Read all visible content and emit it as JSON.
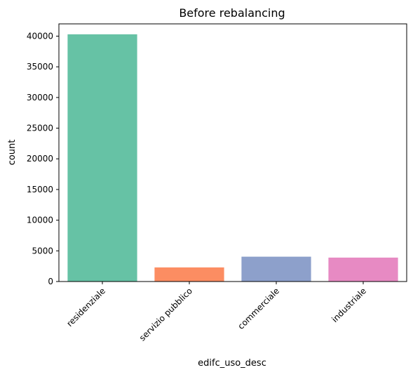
{
  "chart_data": {
    "type": "bar",
    "title": "Before rebalancing",
    "xlabel": "edifc_uso_desc",
    "ylabel": "count",
    "categories": [
      "residenziale",
      "servizio pubblico",
      "commerciale",
      "industriale"
    ],
    "values": [
      40300,
      2300,
      4050,
      3900
    ],
    "colors": [
      "#66c2a5",
      "#fc8d62",
      "#8da0cb",
      "#e78ac3"
    ],
    "ylim": [
      0,
      42000
    ],
    "yticks": [
      0,
      5000,
      10000,
      15000,
      20000,
      25000,
      30000,
      35000,
      40000
    ],
    "ytick_labels": [
      "0",
      "5000",
      "10000",
      "15000",
      "20000",
      "25000",
      "30000",
      "35000",
      "40000"
    ],
    "grid": false,
    "legend": "none"
  }
}
